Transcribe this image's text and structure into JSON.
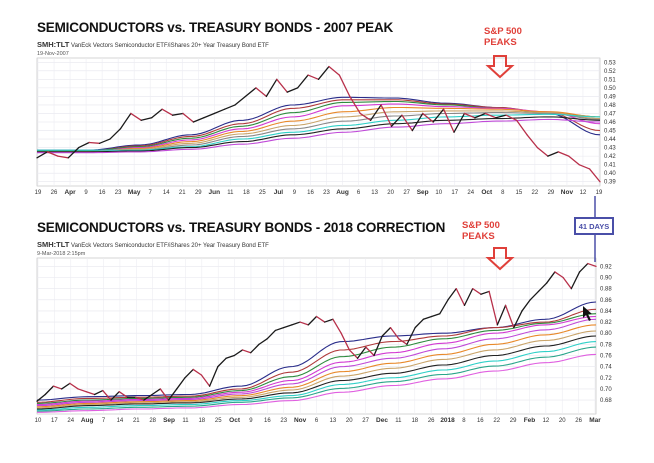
{
  "chart_data": [
    {
      "type": "line",
      "title": "SEMICONDUCTORS vs. TREASURY BONDS - 2007 PEAK",
      "symbol": "SMH:TLT",
      "description_line": "VanEck Vectors Semiconductor ETF/iShares 20+ Year Treasury Bond ETF",
      "date": "19-Nov-2007",
      "annotation": "S&P 500\nPEAKS",
      "annotation_color": "#e0403a",
      "ylim": [
        0.385,
        0.535
      ],
      "y_ticks": [
        "0.53",
        "0.52",
        "0.51",
        "0.50",
        "0.49",
        "0.48",
        "0.47",
        "0.46",
        "0.45",
        "0.44",
        "0.43",
        "0.42",
        "0.41",
        "0.40",
        "0.39"
      ],
      "x_ticks": [
        "19",
        "26",
        "Apr",
        "9",
        "16",
        "23",
        "May",
        "7",
        "14",
        "21",
        "29",
        "Jun",
        "11",
        "18",
        "25",
        "Jul",
        "9",
        "16",
        "23",
        "Aug",
        "6",
        "13",
        "20",
        "27",
        "Sep",
        "10",
        "17",
        "24",
        "Oct",
        "8",
        "15",
        "22",
        "29",
        "Nov",
        "12",
        "19"
      ],
      "x_ticks_bold": [
        "Apr",
        "May",
        "Jun",
        "Jul",
        "Aug",
        "Sep",
        "Oct",
        "Nov"
      ],
      "grid": true,
      "price": [
        0.418,
        0.425,
        0.42,
        0.418,
        0.43,
        0.436,
        0.435,
        0.44,
        0.452,
        0.47,
        0.462,
        0.465,
        0.475,
        0.468,
        0.47,
        0.46,
        0.465,
        0.47,
        0.475,
        0.48,
        0.49,
        0.5,
        0.49,
        0.51,
        0.495,
        0.5,
        0.515,
        0.51,
        0.525,
        0.515,
        0.49,
        0.47,
        0.462,
        0.48,
        0.455,
        0.468,
        0.45,
        0.47,
        0.46,
        0.475,
        0.448,
        0.47,
        0.465,
        0.47,
        0.465,
        0.468,
        0.462,
        0.445,
        0.43,
        0.42,
        0.425,
        0.42,
        0.41,
        0.405,
        0.39
      ],
      "moving_averages": [
        {
          "color": "#2a2d8a",
          "values": [
            0.427,
            0.427,
            0.433,
            0.445,
            0.462,
            0.48,
            0.489,
            0.488,
            0.482,
            0.477,
            0.47,
            0.445
          ]
        },
        {
          "color": "#b03a3a",
          "values": [
            0.426,
            0.426,
            0.432,
            0.443,
            0.458,
            0.476,
            0.486,
            0.486,
            0.481,
            0.477,
            0.471,
            0.45
          ]
        },
        {
          "color": "#2e8b3e",
          "values": [
            0.426,
            0.426,
            0.431,
            0.441,
            0.455,
            0.471,
            0.483,
            0.484,
            0.48,
            0.476,
            0.471,
            0.466
          ]
        },
        {
          "color": "#d23ad2",
          "values": [
            0.425,
            0.425,
            0.43,
            0.439,
            0.452,
            0.466,
            0.479,
            0.481,
            0.478,
            0.476,
            0.472,
            0.458
          ]
        },
        {
          "color": "#e8892a",
          "values": [
            0.425,
            0.425,
            0.429,
            0.437,
            0.449,
            0.461,
            0.472,
            0.477,
            0.476,
            0.475,
            0.472,
            0.466
          ]
        },
        {
          "color": "#c9a46a",
          "values": [
            0.425,
            0.425,
            0.428,
            0.435,
            0.446,
            0.456,
            0.466,
            0.472,
            0.473,
            0.473,
            0.471,
            0.464
          ]
        },
        {
          "color": "#888888",
          "values": [
            0.425,
            0.425,
            0.427,
            0.433,
            0.443,
            0.452,
            0.461,
            0.467,
            0.47,
            0.471,
            0.47,
            0.463
          ]
        },
        {
          "color": "#2fd0c8",
          "values": [
            0.427,
            0.427,
            0.427,
            0.431,
            0.44,
            0.448,
            0.456,
            0.462,
            0.466,
            0.468,
            0.469,
            0.466
          ]
        },
        {
          "color": "#222222",
          "values": [
            0.425,
            0.425,
            0.426,
            0.43,
            0.437,
            0.445,
            0.452,
            0.458,
            0.462,
            0.464,
            0.466,
            0.462
          ]
        },
        {
          "color": "#c04ad8",
          "values": [
            0.424,
            0.424,
            0.425,
            0.428,
            0.434,
            0.441,
            0.448,
            0.454,
            0.458,
            0.461,
            0.463,
            0.46
          ]
        }
      ]
    },
    {
      "type": "line",
      "title": "SEMICONDUCTORS vs. TREASURY BONDS - 2018 CORRECTION",
      "symbol": "SMH:TLT",
      "description_line": "VanEck Vectors Semiconductor ETF/iShares 20+ Year Treasury Bond ETF",
      "date": "9-Mar-2018 2:15pm",
      "annotation": "S&P 500\nPEAKS",
      "annotation_color": "#e0403a",
      "callout": "41 DAYS",
      "callout_color": "#4a4fa8",
      "ylim": [
        0.655,
        0.935
      ],
      "y_ticks": [
        "0.92",
        "0.90",
        "0.88",
        "0.86",
        "0.84",
        "0.82",
        "0.80",
        "0.78",
        "0.76",
        "0.74",
        "0.72",
        "0.70",
        "0.68"
      ],
      "x_ticks": [
        "10",
        "17",
        "24",
        "Aug",
        "7",
        "14",
        "21",
        "28",
        "Sep",
        "11",
        "18",
        "25",
        "Oct",
        "9",
        "16",
        "23",
        "Nov",
        "6",
        "13",
        "20",
        "27",
        "Dec",
        "11",
        "18",
        "26",
        "2018",
        "8",
        "16",
        "22",
        "29",
        "Feb",
        "12",
        "20",
        "26",
        "Mar"
      ],
      "x_ticks_bold": [
        "Aug",
        "Sep",
        "Oct",
        "Nov",
        "Dec",
        "2018",
        "Feb",
        "Mar"
      ],
      "grid": true,
      "price": [
        0.678,
        0.69,
        0.705,
        0.7,
        0.71,
        0.7,
        0.695,
        0.69,
        0.697,
        0.68,
        0.695,
        0.685,
        0.685,
        0.68,
        0.69,
        0.7,
        0.68,
        0.7,
        0.72,
        0.735,
        0.725,
        0.705,
        0.74,
        0.755,
        0.76,
        0.77,
        0.765,
        0.78,
        0.79,
        0.805,
        0.81,
        0.815,
        0.82,
        0.815,
        0.83,
        0.82,
        0.825,
        0.8,
        0.77,
        0.755,
        0.775,
        0.76,
        0.795,
        0.81,
        0.79,
        0.78,
        0.81,
        0.825,
        0.83,
        0.835,
        0.86,
        0.88,
        0.85,
        0.88,
        0.87,
        0.875,
        0.815,
        0.85,
        0.81,
        0.84,
        0.86,
        0.875,
        0.89,
        0.91,
        0.9,
        0.88,
        0.91,
        0.925,
        0.92
      ],
      "moving_averages": [
        {
          "color": "#2a2d8a",
          "values": [
            0.68,
            0.686,
            0.688,
            0.69,
            0.705,
            0.74,
            0.785,
            0.795,
            0.8,
            0.81,
            0.825,
            0.856
          ]
        },
        {
          "color": "#b03a3a",
          "values": [
            0.676,
            0.683,
            0.685,
            0.687,
            0.7,
            0.73,
            0.77,
            0.785,
            0.795,
            0.81,
            0.82,
            0.843
          ]
        },
        {
          "color": "#2e8b3e",
          "values": [
            0.674,
            0.68,
            0.683,
            0.685,
            0.697,
            0.722,
            0.758,
            0.775,
            0.79,
            0.805,
            0.818,
            0.835
          ]
        },
        {
          "color": "#d23ad2",
          "values": [
            0.672,
            0.678,
            0.681,
            0.683,
            0.694,
            0.715,
            0.748,
            0.765,
            0.782,
            0.8,
            0.815,
            0.83
          ]
        },
        {
          "color": "#c04ad8",
          "values": [
            0.67,
            0.676,
            0.679,
            0.681,
            0.691,
            0.709,
            0.74,
            0.755,
            0.772,
            0.79,
            0.806,
            0.825
          ]
        },
        {
          "color": "#e8892a",
          "values": [
            0.668,
            0.674,
            0.677,
            0.679,
            0.688,
            0.703,
            0.731,
            0.746,
            0.762,
            0.78,
            0.797,
            0.815
          ]
        },
        {
          "color": "#c9a46a",
          "values": [
            0.666,
            0.672,
            0.675,
            0.677,
            0.685,
            0.698,
            0.723,
            0.737,
            0.753,
            0.77,
            0.787,
            0.804
          ]
        },
        {
          "color": "#222222",
          "values": [
            0.664,
            0.67,
            0.673,
            0.675,
            0.682,
            0.693,
            0.715,
            0.728,
            0.743,
            0.76,
            0.777,
            0.795
          ]
        },
        {
          "color": "#2fd0c8",
          "values": [
            0.662,
            0.667,
            0.67,
            0.672,
            0.679,
            0.688,
            0.708,
            0.72,
            0.734,
            0.75,
            0.767,
            0.785
          ]
        },
        {
          "color": "#2aa58a",
          "values": [
            0.66,
            0.664,
            0.667,
            0.669,
            0.676,
            0.684,
            0.701,
            0.713,
            0.726,
            0.741,
            0.757,
            0.775
          ]
        },
        {
          "color": "#e060e0",
          "values": [
            0.658,
            0.661,
            0.664,
            0.666,
            0.672,
            0.679,
            0.694,
            0.706,
            0.718,
            0.732,
            0.747,
            0.762
          ]
        }
      ]
    }
  ]
}
